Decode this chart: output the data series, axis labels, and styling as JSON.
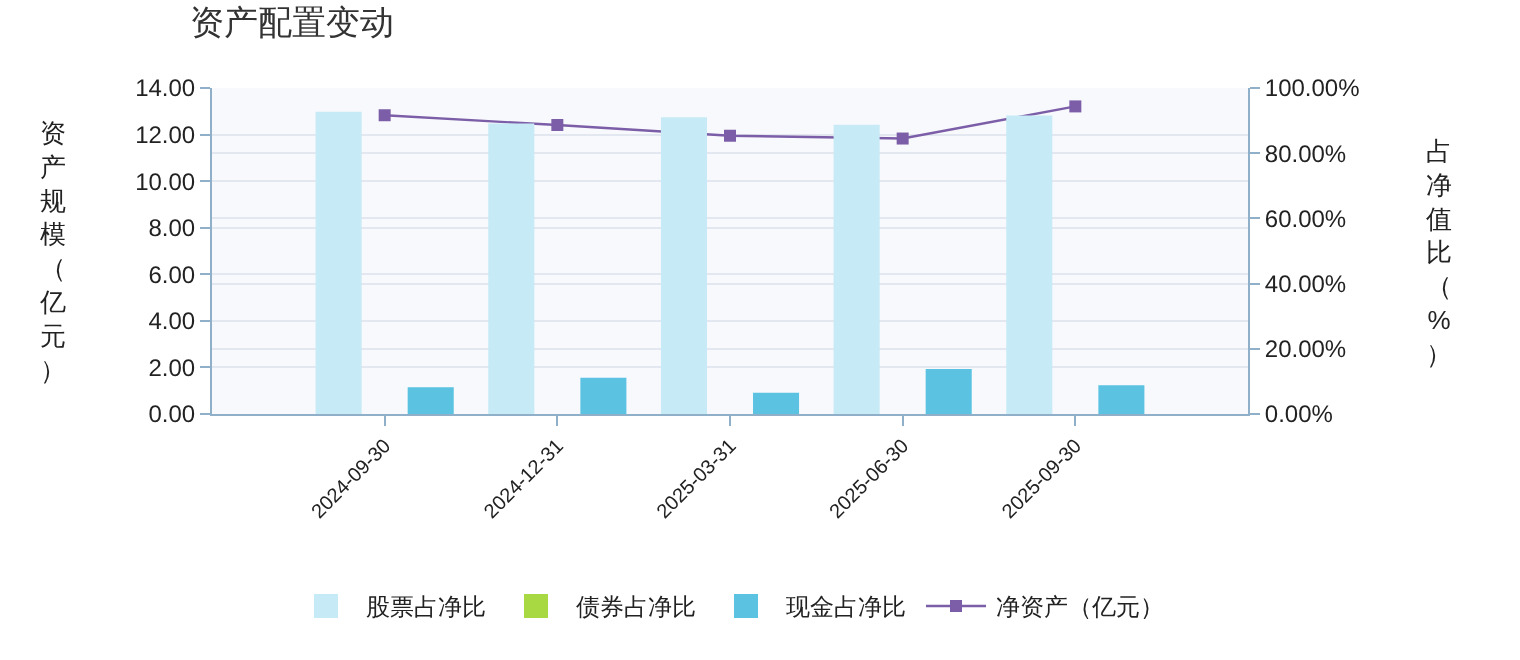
{
  "chart_data": {
    "type": "bar",
    "title": "资产配置变动",
    "ylabel": "资产规模（亿元）",
    "y2label": "占净值比（%）",
    "categories": [
      "2024-09-30",
      "2024-12-31",
      "2025-03-31",
      "2025-06-30",
      "2025-09-30"
    ],
    "series": [
      {
        "name": "股票占净比",
        "color": "#c6eaf6",
        "axis": "y2",
        "values": [
          92.7,
          89.1,
          91.0,
          88.7,
          91.6
        ]
      },
      {
        "name": "债券占净比",
        "color": "#a8d842",
        "axis": "y2",
        "values": [
          null,
          null,
          null,
          null,
          null
        ]
      },
      {
        "name": "现金占净比",
        "color": "#5bc2e2",
        "axis": "y2",
        "values": [
          8.2,
          11.1,
          6.5,
          13.8,
          8.8
        ]
      },
      {
        "name": "净资产（亿元）",
        "type": "line",
        "color": "#7b5ea7",
        "marker": "square",
        "values": [
          12.83,
          12.41,
          11.95,
          11.83,
          13.21
        ]
      }
    ],
    "ylim": [
      0,
      14
    ],
    "yticks": [
      {
        "value": 0,
        "label": "0.00"
      },
      {
        "value": 2,
        "label": "2.00"
      },
      {
        "value": 4,
        "label": "4.00"
      },
      {
        "value": 6,
        "label": "6.00"
      },
      {
        "value": 8,
        "label": "8.00"
      },
      {
        "value": 10,
        "label": "10.00"
      },
      {
        "value": 12,
        "label": "12.00"
      },
      {
        "value": 14,
        "label": "14.00"
      }
    ],
    "y2lim": [
      0,
      100
    ],
    "y2ticks": [
      {
        "value": 0,
        "label": "0.00%"
      },
      {
        "value": 20,
        "label": "20.00%"
      },
      {
        "value": 40,
        "label": "40.00%"
      },
      {
        "value": 60,
        "label": "60.00%"
      },
      {
        "value": 80,
        "label": "80.00%"
      },
      {
        "value": 100,
        "label": "100.00%"
      }
    ],
    "grid": true,
    "legend": "bottom"
  }
}
